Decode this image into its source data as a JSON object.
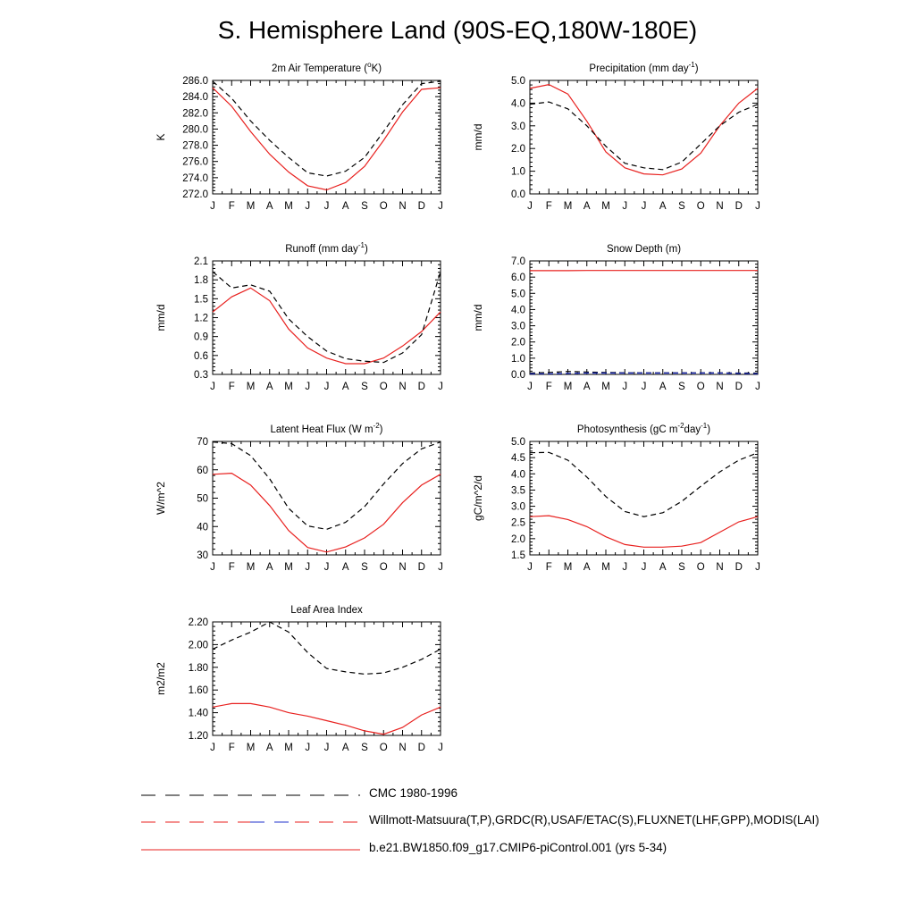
{
  "title": "S. Hemisphere Land (90S-EQ,180W-180E)",
  "colors": {
    "model": "#e8211f",
    "cmc": "#000000",
    "obs": "#e8211f",
    "obs_alt": "#2233cc"
  },
  "legend": [
    {
      "label": "CMC 1980-1996",
      "style": "dashed-black"
    },
    {
      "label": "Willmott-Matsuura(T,P),GRDC(R),USAF/ETAC(S),FLUXNET(LHF,GPP),MODIS(LAI)",
      "style": "dashed-red-blue"
    },
    {
      "label": "b.e21.BW1850.f09_g17.CMIP6-piControl.001 (yrs 5-34)",
      "style": "solid-red"
    }
  ],
  "chart_data": [
    {
      "type": "line",
      "title": "2m Air Temperature (°K)",
      "title_parts": [
        "2m Air Temperature (",
        "o",
        "K)"
      ],
      "ylabel": "K",
      "x": [
        "J",
        "F",
        "M",
        "A",
        "M",
        "J",
        "J",
        "A",
        "S",
        "O",
        "N",
        "D",
        "J"
      ],
      "ylim": [
        272.0,
        286.0
      ],
      "yticks": [
        272.0,
        274.0,
        276.0,
        278.0,
        280.0,
        282.0,
        284.0,
        286.0
      ],
      "ytick_labels": [
        "272.0",
        "274.0",
        "276.0",
        "278.0",
        "280.0",
        "282.0",
        "284.0",
        "286.0"
      ],
      "series": [
        {
          "role": "model",
          "values": [
            285.1,
            282.8,
            279.7,
            276.9,
            274.7,
            273.0,
            272.5,
            273.4,
            275.4,
            278.6,
            282.1,
            284.9,
            285.1
          ]
        },
        {
          "role": "cmc",
          "values": [
            285.9,
            283.8,
            281.0,
            278.6,
            276.5,
            274.6,
            274.2,
            274.8,
            276.5,
            279.7,
            283.0,
            285.6,
            285.9
          ]
        }
      ]
    },
    {
      "type": "line",
      "title": "Precipitation (mm day-1)",
      "title_parts": [
        "Precipitation (mm day",
        "-1",
        ")"
      ],
      "ylabel": "mm/d",
      "x": [
        "J",
        "F",
        "M",
        "A",
        "M",
        "J",
        "J",
        "A",
        "S",
        "O",
        "N",
        "D",
        "J"
      ],
      "ylim": [
        0.0,
        5.0
      ],
      "yticks": [
        0.0,
        1.0,
        2.0,
        3.0,
        4.0,
        5.0
      ],
      "ytick_labels": [
        "0.0",
        "1.0",
        "2.0",
        "3.0",
        "4.0",
        "5.0"
      ],
      "series": [
        {
          "role": "model",
          "values": [
            4.65,
            4.82,
            4.4,
            3.2,
            1.85,
            1.15,
            0.88,
            0.84,
            1.1,
            1.8,
            3.0,
            4.0,
            4.65
          ]
        },
        {
          "role": "cmc",
          "values": [
            3.95,
            4.05,
            3.75,
            3.0,
            2.1,
            1.35,
            1.15,
            1.07,
            1.4,
            2.2,
            3.0,
            3.6,
            3.95
          ]
        }
      ]
    },
    {
      "type": "line",
      "title": "Runoff (mm day-1)",
      "title_parts": [
        "Runoff (mm day",
        "-1",
        ")"
      ],
      "ylabel": "mm/d",
      "x": [
        "J",
        "F",
        "M",
        "A",
        "M",
        "J",
        "J",
        "A",
        "S",
        "O",
        "N",
        "D",
        "J"
      ],
      "ylim": [
        0.3,
        2.1
      ],
      "yticks": [
        0.3,
        0.6,
        0.9,
        1.2,
        1.5,
        1.8,
        2.1
      ],
      "ytick_labels": [
        "0.3",
        "0.6",
        "0.9",
        "1.2",
        "1.5",
        "1.8",
        "2.1"
      ],
      "series": [
        {
          "role": "model",
          "values": [
            1.29,
            1.53,
            1.67,
            1.47,
            1.02,
            0.72,
            0.56,
            0.47,
            0.47,
            0.56,
            0.75,
            0.98,
            1.29
          ]
        },
        {
          "role": "cmc",
          "values": [
            1.93,
            1.67,
            1.72,
            1.62,
            1.18,
            0.9,
            0.67,
            0.55,
            0.51,
            0.49,
            0.64,
            0.93,
            1.93
          ]
        }
      ]
    },
    {
      "type": "line",
      "title": "Snow Depth (m)",
      "title_parts": [
        "Snow Depth (m)"
      ],
      "ylabel": "mm/d",
      "x": [
        "J",
        "F",
        "M",
        "A",
        "M",
        "J",
        "J",
        "A",
        "S",
        "O",
        "N",
        "D",
        "J"
      ],
      "ylim": [
        0.0,
        7.0
      ],
      "yticks": [
        0.0,
        1.0,
        2.0,
        3.0,
        4.0,
        5.0,
        6.0,
        7.0
      ],
      "ytick_labels": [
        "0.0",
        "1.0",
        "2.0",
        "3.0",
        "4.0",
        "5.0",
        "6.0",
        "7.0"
      ],
      "series": [
        {
          "role": "model",
          "values": [
            6.4,
            6.4,
            6.4,
            6.41,
            6.41,
            6.41,
            6.41,
            6.41,
            6.41,
            6.41,
            6.41,
            6.41,
            6.41
          ]
        },
        {
          "role": "cmc",
          "values": [
            0.08,
            0.12,
            0.18,
            0.15,
            0.12,
            0.1,
            0.1,
            0.1,
            0.1,
            0.1,
            0.1,
            0.08,
            0.08
          ]
        },
        {
          "role": "obs_alt",
          "values": [
            0.04,
            0.04,
            0.06,
            0.08,
            0.08,
            0.08,
            0.08,
            0.08,
            0.08,
            0.08,
            0.08,
            0.06,
            0.04
          ]
        }
      ]
    },
    {
      "type": "line",
      "title": "Latent Heat Flux (W m-2)",
      "title_parts": [
        "Latent Heat Flux (W m",
        "-2",
        ")"
      ],
      "ylabel": "W/m^2",
      "x": [
        "J",
        "F",
        "M",
        "A",
        "M",
        "J",
        "J",
        "A",
        "S",
        "O",
        "N",
        "D",
        "J"
      ],
      "ylim": [
        30,
        70
      ],
      "yticks": [
        30,
        40,
        50,
        60,
        70
      ],
      "ytick_labels": [
        "30",
        "40",
        "50",
        "60",
        "70"
      ],
      "series": [
        {
          "role": "model",
          "values": [
            58.4,
            58.8,
            54.6,
            47.4,
            38.6,
            32.6,
            31.0,
            32.8,
            36.0,
            40.8,
            48.4,
            54.6,
            58.4
          ]
        },
        {
          "role": "cmc",
          "values": [
            69.8,
            69.2,
            65.0,
            56.8,
            46.4,
            40.2,
            39.0,
            41.5,
            47.0,
            55.0,
            62.2,
            67.4,
            69.8
          ]
        }
      ]
    },
    {
      "type": "line",
      "title": "Photosynthesis (gC m-2day-1)",
      "title_parts": [
        "Photosynthesis (gC m",
        "-2",
        "day",
        "-1",
        ")"
      ],
      "ylabel": "gC/m^2/d",
      "x": [
        "J",
        "F",
        "M",
        "A",
        "M",
        "J",
        "J",
        "A",
        "S",
        "O",
        "N",
        "D",
        "J"
      ],
      "ylim": [
        1.5,
        5.0
      ],
      "yticks": [
        1.5,
        2.0,
        2.5,
        3.0,
        3.5,
        4.0,
        4.5,
        5.0
      ],
      "ytick_labels": [
        "1.5",
        "2.0",
        "2.5",
        "3.0",
        "3.5",
        "4.0",
        "4.5",
        "5.0"
      ],
      "series": [
        {
          "role": "model",
          "values": [
            2.68,
            2.71,
            2.59,
            2.37,
            2.06,
            1.82,
            1.74,
            1.74,
            1.77,
            1.88,
            2.2,
            2.52,
            2.68
          ]
        },
        {
          "role": "cmc",
          "values": [
            4.65,
            4.66,
            4.42,
            3.9,
            3.3,
            2.84,
            2.68,
            2.8,
            3.15,
            3.62,
            4.06,
            4.42,
            4.65
          ]
        }
      ]
    },
    {
      "type": "line",
      "title": "Leaf Area Index",
      "title_parts": [
        "Leaf Area Index"
      ],
      "ylabel": "m2/m2",
      "x": [
        "J",
        "F",
        "M",
        "A",
        "M",
        "J",
        "J",
        "A",
        "S",
        "O",
        "N",
        "D",
        "J"
      ],
      "ylim": [
        1.2,
        2.2
      ],
      "yticks": [
        1.2,
        1.4,
        1.6,
        1.8,
        2.0,
        2.2
      ],
      "ytick_labels": [
        "1.20",
        "1.40",
        "1.60",
        "1.80",
        "2.00",
        "2.20"
      ],
      "series": [
        {
          "role": "model",
          "values": [
            1.45,
            1.48,
            1.48,
            1.45,
            1.4,
            1.37,
            1.33,
            1.29,
            1.24,
            1.21,
            1.27,
            1.38,
            1.45
          ]
        },
        {
          "role": "cmc",
          "values": [
            1.96,
            2.04,
            2.11,
            2.2,
            2.11,
            1.93,
            1.79,
            1.76,
            1.74,
            1.75,
            1.8,
            1.87,
            1.96
          ]
        }
      ]
    }
  ]
}
